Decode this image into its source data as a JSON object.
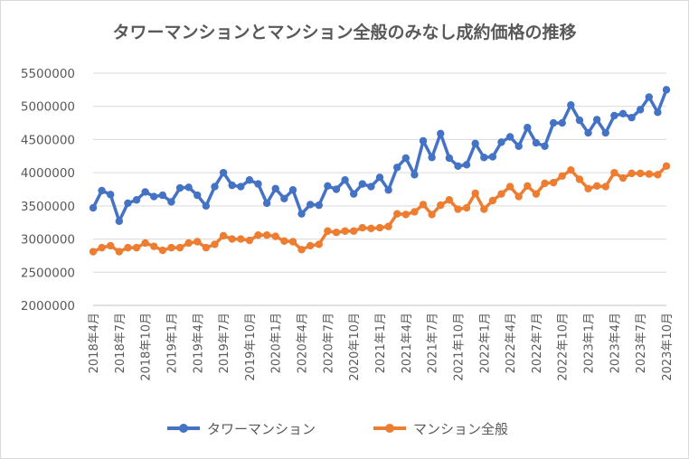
{
  "chart_data": {
    "type": "line",
    "title": "タワーマンションとマンション全般のみなし成約価格の推移",
    "xlabel": "",
    "ylabel": "",
    "ylim": [
      2000000,
      5500000
    ],
    "yticks": [
      "2000000",
      "2500000",
      "3000000",
      "3500000",
      "4000000",
      "4500000",
      "5000000",
      "5500000"
    ],
    "grid": true,
    "legend_position": "bottom",
    "x": [
      "2018年4月",
      "2018年5月",
      "2018年6月",
      "2018年7月",
      "2018年8月",
      "2018年9月",
      "2018年10月",
      "2018年11月",
      "2018年12月",
      "2019年1月",
      "2019年2月",
      "2019年3月",
      "2019年4月",
      "2019年5月",
      "2019年6月",
      "2019年7月",
      "2019年8月",
      "2019年9月",
      "2019年10月",
      "2019年11月",
      "2019年12月",
      "2020年1月",
      "2020年2月",
      "2020年3月",
      "2020年4月",
      "2020年5月",
      "2020年6月",
      "2020年7月",
      "2020年8月",
      "2020年9月",
      "2020年10月",
      "2020年11月",
      "2020年12月",
      "2021年1月",
      "2021年2月",
      "2021年3月",
      "2021年4月",
      "2021年5月",
      "2021年6月",
      "2021年7月",
      "2021年8月",
      "2021年9月",
      "2021年10月",
      "2021年11月",
      "2021年12月",
      "2022年1月",
      "2022年2月",
      "2022年3月",
      "2022年4月",
      "2022年5月",
      "2022年6月",
      "2022年7月",
      "2022年8月",
      "2022年9月",
      "2022年10月",
      "2022年11月",
      "2022年12月",
      "2023年1月",
      "2023年2月",
      "2023年3月",
      "2023年4月",
      "2023年5月",
      "2023年6月",
      "2023年7月",
      "2023年8月",
      "2023年9月",
      "2023年10月"
    ],
    "xtick_labels": [
      "2018年4月",
      "2018年7月",
      "2018年10月",
      "2019年1月",
      "2019年4月",
      "2019年7月",
      "2019年10月",
      "2020年1月",
      "2020年4月",
      "2020年7月",
      "2020年10月",
      "2021年1月",
      "2021年4月",
      "2021年7月",
      "2021年10月",
      "2022年1月",
      "2022年4月",
      "2022年7月",
      "2022年10月",
      "2023年1月",
      "2023年4月",
      "2023年7月",
      "2023年10月"
    ],
    "series": [
      {
        "name": "タワーマンション",
        "color": "#4472c4",
        "values": [
          3470000,
          3730000,
          3670000,
          3270000,
          3540000,
          3590000,
          3710000,
          3640000,
          3660000,
          3560000,
          3770000,
          3780000,
          3660000,
          3500000,
          3790000,
          4000000,
          3810000,
          3790000,
          3890000,
          3830000,
          3540000,
          3760000,
          3610000,
          3740000,
          3380000,
          3520000,
          3510000,
          3800000,
          3750000,
          3890000,
          3680000,
          3830000,
          3790000,
          3930000,
          3740000,
          4080000,
          4220000,
          3970000,
          4480000,
          4230000,
          4590000,
          4220000,
          4100000,
          4120000,
          4440000,
          4230000,
          4240000,
          4460000,
          4540000,
          4400000,
          4680000,
          4450000,
          4400000,
          4750000,
          4750000,
          5020000,
          4790000,
          4600000,
          4800000,
          4600000,
          4860000,
          4890000,
          4830000,
          4950000,
          5140000,
          4910000,
          5250000
        ]
      },
      {
        "name": "マンション全般",
        "color": "#ed7d31",
        "values": [
          2810000,
          2870000,
          2900000,
          2810000,
          2870000,
          2870000,
          2940000,
          2890000,
          2830000,
          2870000,
          2870000,
          2940000,
          2960000,
          2870000,
          2920000,
          3050000,
          3000000,
          3000000,
          2980000,
          3060000,
          3060000,
          3040000,
          2970000,
          2960000,
          2840000,
          2900000,
          2920000,
          3120000,
          3100000,
          3120000,
          3120000,
          3170000,
          3160000,
          3170000,
          3190000,
          3380000,
          3370000,
          3410000,
          3520000,
          3370000,
          3510000,
          3590000,
          3450000,
          3470000,
          3690000,
          3450000,
          3580000,
          3680000,
          3790000,
          3640000,
          3800000,
          3680000,
          3840000,
          3850000,
          3950000,
          4040000,
          3900000,
          3760000,
          3800000,
          3790000,
          4000000,
          3920000,
          3990000,
          3990000,
          3980000,
          3970000,
          4100000
        ]
      }
    ]
  }
}
